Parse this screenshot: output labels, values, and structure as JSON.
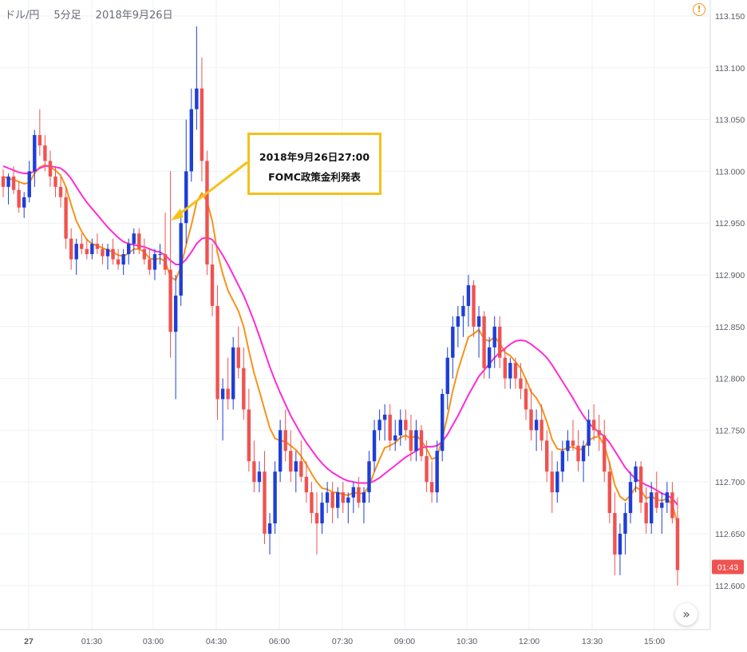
{
  "header": {
    "pair": "ドル/円",
    "interval": "5分足",
    "date": "2018年9月26日"
  },
  "annotation": {
    "line1": "2018年9月26日27:00",
    "line2": "FOMC政策金利発表"
  },
  "last_price_label": "01:43",
  "icons": {
    "alert": "alert-circle-icon",
    "scroll": "double-chevron-right-icon"
  },
  "colors": {
    "up": "#1e3ed6",
    "down": "#ef5350",
    "ma_short": "#f7931a",
    "ma_long": "#ff2bd6",
    "annotation_border": "#f5c11b",
    "price_label_bg": "#ef5350"
  },
  "chart_data": {
    "type": "candlestick",
    "y_ticks": [
      "113.150",
      "113.100",
      "113.050",
      "113.000",
      "112.950",
      "112.900",
      "112.850",
      "112.800",
      "112.750",
      "112.700",
      "112.650",
      "112.600"
    ],
    "ylim": [
      112.57,
      113.17
    ],
    "x_ticks": [
      "27",
      "01:30",
      "03:00",
      "04:30",
      "06:00",
      "07:30",
      "09:00",
      "10:30",
      "12:00",
      "13:30",
      "15:00"
    ],
    "candle_interval_minutes": 5,
    "candles_ohlc": [
      [
        112.995,
        113.002,
        112.975,
        112.985
      ],
      [
        112.985,
        112.998,
        112.968,
        112.995
      ],
      [
        112.995,
        113.005,
        112.978,
        112.982
      ],
      [
        112.982,
        112.99,
        112.96,
        112.965
      ],
      [
        112.965,
        112.98,
        112.955,
        112.975
      ],
      [
        112.975,
        113.01,
        112.97,
        113.0
      ],
      [
        113.0,
        113.04,
        112.985,
        113.035
      ],
      [
        113.035,
        113.06,
        113.015,
        113.025
      ],
      [
        113.025,
        113.035,
        113.0,
        113.01
      ],
      [
        113.01,
        113.02,
        112.985,
        112.995
      ],
      [
        112.995,
        113.005,
        112.975,
        112.985
      ],
      [
        112.985,
        112.995,
        112.965,
        112.975
      ],
      [
        112.975,
        112.985,
        112.925,
        112.935
      ],
      [
        112.935,
        112.945,
        112.905,
        112.915
      ],
      [
        112.915,
        112.935,
        112.9,
        112.93
      ],
      [
        112.93,
        112.94,
        112.92,
        112.925
      ],
      [
        112.925,
        112.935,
        112.915,
        112.92
      ],
      [
        112.92,
        112.935,
        112.915,
        112.93
      ],
      [
        112.93,
        112.94,
        112.92,
        112.925
      ],
      [
        112.925,
        112.93,
        112.91,
        112.918
      ],
      [
        112.918,
        112.93,
        112.905,
        112.925
      ],
      [
        112.925,
        112.935,
        112.91,
        112.915
      ],
      [
        112.915,
        112.925,
        112.905,
        112.91
      ],
      [
        112.91,
        112.925,
        112.9,
        112.92
      ],
      [
        112.92,
        112.935,
        112.91,
        112.93
      ],
      [
        112.93,
        112.945,
        112.92,
        112.94
      ],
      [
        112.94,
        112.945,
        112.92,
        112.925
      ],
      [
        112.925,
        112.935,
        112.91,
        112.915
      ],
      [
        112.915,
        112.925,
        112.9,
        112.905
      ],
      [
        112.905,
        112.925,
        112.895,
        112.92
      ],
      [
        112.92,
        112.93,
        112.91,
        112.92
      ],
      [
        112.92,
        112.96,
        112.9,
        112.905
      ],
      [
        112.905,
        113.0,
        112.82,
        112.845
      ],
      [
        112.845,
        112.9,
        112.78,
        112.88
      ],
      [
        112.88,
        112.96,
        112.87,
        112.95
      ],
      [
        112.95,
        113.05,
        112.93,
        113.0
      ],
      [
        113.0,
        113.08,
        112.99,
        113.06
      ],
      [
        113.06,
        113.14,
        113.04,
        113.08
      ],
      [
        113.08,
        113.11,
        112.99,
        113.01
      ],
      [
        113.01,
        113.02,
        112.9,
        112.91
      ],
      [
        112.91,
        112.93,
        112.86,
        112.87
      ],
      [
        112.87,
        112.89,
        112.76,
        112.78
      ],
      [
        112.78,
        112.8,
        112.74,
        112.79
      ],
      [
        112.79,
        112.82,
        112.77,
        112.78
      ],
      [
        112.78,
        112.84,
        112.77,
        112.83
      ],
      [
        112.83,
        112.85,
        112.8,
        112.81
      ],
      [
        112.81,
        112.83,
        112.76,
        112.77
      ],
      [
        112.77,
        112.79,
        112.71,
        112.72
      ],
      [
        112.72,
        112.74,
        112.69,
        112.7
      ],
      [
        112.7,
        112.72,
        112.69,
        112.71
      ],
      [
        112.71,
        112.73,
        112.64,
        112.65
      ],
      [
        112.65,
        112.67,
        112.63,
        112.66
      ],
      [
        112.66,
        112.72,
        112.65,
        112.71
      ],
      [
        112.71,
        112.76,
        112.7,
        112.75
      ],
      [
        112.75,
        112.77,
        112.72,
        112.73
      ],
      [
        112.73,
        112.75,
        112.7,
        112.71
      ],
      [
        112.71,
        112.73,
        112.69,
        112.72
      ],
      [
        112.72,
        112.74,
        112.7,
        112.705
      ],
      [
        112.705,
        112.72,
        112.68,
        112.69
      ],
      [
        112.69,
        112.7,
        112.66,
        112.67
      ],
      [
        112.67,
        112.69,
        112.63,
        112.66
      ],
      [
        112.66,
        112.69,
        112.65,
        112.68
      ],
      [
        112.68,
        112.7,
        112.67,
        112.69
      ],
      [
        112.69,
        112.7,
        112.66,
        112.675
      ],
      [
        112.675,
        112.695,
        112.665,
        112.69
      ],
      [
        112.69,
        112.7,
        112.67,
        112.68
      ],
      [
        112.68,
        112.69,
        112.66,
        112.685
      ],
      [
        112.685,
        112.7,
        112.67,
        112.695
      ],
      [
        112.695,
        112.705,
        112.675,
        112.68
      ],
      [
        112.68,
        112.695,
        112.66,
        112.69
      ],
      [
        112.69,
        112.73,
        112.68,
        112.72
      ],
      [
        112.72,
        112.76,
        112.71,
        112.75
      ],
      [
        112.75,
        112.77,
        112.74,
        112.76
      ],
      [
        112.76,
        112.775,
        112.74,
        112.765
      ],
      [
        112.765,
        112.775,
        112.73,
        112.74
      ],
      [
        112.74,
        112.76,
        112.73,
        112.745
      ],
      [
        112.745,
        112.77,
        112.735,
        112.76
      ],
      [
        112.76,
        112.77,
        112.74,
        112.75
      ],
      [
        112.75,
        112.765,
        112.72,
        112.73
      ],
      [
        112.73,
        112.76,
        112.72,
        112.75
      ],
      [
        112.75,
        112.755,
        112.72,
        112.725
      ],
      [
        112.725,
        112.74,
        112.69,
        112.7
      ],
      [
        112.7,
        112.72,
        112.68,
        112.69
      ],
      [
        112.69,
        112.74,
        112.68,
        112.73
      ],
      [
        112.73,
        112.79,
        112.72,
        112.785
      ],
      [
        112.785,
        112.83,
        112.77,
        112.82
      ],
      [
        112.82,
        112.86,
        112.8,
        112.85
      ],
      [
        112.85,
        112.87,
        112.83,
        112.86
      ],
      [
        112.86,
        112.88,
        112.84,
        112.87
      ],
      [
        112.87,
        112.9,
        112.85,
        112.89
      ],
      [
        112.89,
        112.895,
        112.84,
        112.85
      ],
      [
        112.85,
        112.87,
        112.82,
        112.86
      ],
      [
        112.86,
        112.865,
        112.8,
        112.81
      ],
      [
        112.81,
        112.84,
        112.8,
        112.83
      ],
      [
        112.83,
        112.86,
        112.81,
        112.85
      ],
      [
        112.85,
        112.86,
        112.81,
        112.82
      ],
      [
        112.82,
        112.83,
        112.79,
        112.8
      ],
      [
        112.8,
        112.82,
        112.79,
        112.815
      ],
      [
        112.815,
        112.82,
        112.79,
        112.8
      ],
      [
        112.8,
        112.815,
        112.78,
        112.79
      ],
      [
        112.79,
        112.8,
        112.76,
        112.77
      ],
      [
        112.77,
        112.79,
        112.74,
        112.75
      ],
      [
        112.75,
        112.77,
        112.73,
        112.76
      ],
      [
        112.76,
        112.775,
        112.73,
        112.74
      ],
      [
        112.74,
        112.75,
        112.7,
        112.71
      ],
      [
        112.71,
        112.73,
        112.67,
        112.69
      ],
      [
        112.69,
        112.72,
        112.68,
        112.71
      ],
      [
        112.71,
        112.74,
        112.7,
        112.73
      ],
      [
        112.73,
        112.75,
        112.72,
        112.74
      ],
      [
        112.74,
        112.76,
        112.73,
        112.735
      ],
      [
        112.735,
        112.75,
        112.71,
        112.72
      ],
      [
        112.72,
        112.74,
        112.7,
        112.735
      ],
      [
        112.735,
        112.77,
        112.725,
        112.76
      ],
      [
        112.76,
        112.775,
        112.74,
        112.75
      ],
      [
        112.75,
        112.765,
        112.73,
        112.745
      ],
      [
        112.745,
        112.76,
        112.7,
        112.71
      ],
      [
        112.71,
        112.72,
        112.66,
        112.67
      ],
      [
        112.67,
        112.69,
        112.61,
        112.63
      ],
      [
        112.63,
        112.66,
        112.61,
        112.65
      ],
      [
        112.65,
        112.68,
        112.63,
        112.67
      ],
      [
        112.67,
        112.71,
        112.66,
        112.7
      ],
      [
        112.7,
        112.72,
        112.69,
        112.715
      ],
      [
        112.715,
        112.72,
        112.67,
        112.68
      ],
      [
        112.68,
        112.695,
        112.65,
        112.66
      ],
      [
        112.66,
        112.7,
        112.65,
        112.69
      ],
      [
        112.69,
        112.71,
        112.67,
        112.675
      ],
      [
        112.675,
        112.69,
        112.65,
        112.68
      ],
      [
        112.68,
        112.7,
        112.67,
        112.69
      ],
      [
        112.69,
        112.7,
        112.66,
        112.665
      ],
      [
        112.665,
        112.685,
        112.6,
        112.615
      ]
    ],
    "series": [
      {
        "name": "",
        "values": [
          112.995,
          112.993,
          112.992,
          112.99,
          112.988,
          112.989,
          112.998,
          113.004,
          113.006,
          113.004,
          113.001,
          112.996,
          112.985,
          112.968,
          112.952,
          112.942,
          112.934,
          112.93,
          112.928,
          112.926,
          112.924,
          112.922,
          112.919,
          112.918,
          112.921,
          112.925,
          112.925,
          112.922,
          112.916,
          112.915,
          112.916,
          112.913,
          112.898,
          112.895,
          112.908,
          112.929,
          112.948,
          112.97,
          112.979,
          112.971,
          112.952,
          112.921,
          112.901,
          112.885,
          112.875,
          112.865,
          112.85,
          112.827,
          112.805,
          112.788,
          112.77,
          112.752,
          112.742,
          112.74,
          112.739,
          112.735,
          112.731,
          112.725,
          112.717,
          112.708,
          112.7,
          112.694,
          112.693,
          112.69,
          112.69,
          112.688,
          112.687,
          112.69,
          112.689,
          112.689,
          112.696,
          112.71,
          112.722,
          112.733,
          112.735,
          112.738,
          112.743,
          112.745,
          112.742,
          112.745,
          112.74,
          112.732,
          112.722,
          112.724,
          112.742,
          112.764,
          112.788,
          112.808,
          112.824,
          112.84,
          112.843,
          112.847,
          112.838,
          112.836,
          112.84,
          112.834,
          112.825,
          112.822,
          112.816,
          112.81,
          112.799,
          112.787,
          112.781,
          112.772,
          112.758,
          112.741,
          112.732,
          112.731,
          112.733,
          112.734,
          112.731,
          112.732,
          112.74,
          112.743,
          112.744,
          112.735,
          112.718,
          112.697,
          112.686,
          112.682,
          112.687,
          112.695,
          112.692,
          112.684,
          112.686,
          112.683,
          112.682,
          112.684,
          112.678,
          112.66
        ]
      },
      {
        "name": "",
        "values": [
          113.005,
          113.003,
          113.001,
          112.999,
          112.998,
          112.998,
          113.0,
          113.003,
          113.005,
          113.005,
          113.004,
          113.003,
          112.999,
          112.993,
          112.985,
          112.977,
          112.97,
          112.964,
          112.958,
          112.952,
          112.946,
          112.941,
          112.936,
          112.932,
          112.93,
          112.929,
          112.928,
          112.927,
          112.925,
          112.923,
          112.922,
          112.919,
          112.914,
          112.91,
          112.91,
          112.915,
          112.922,
          112.93,
          112.935,
          112.936,
          112.934,
          112.927,
          112.919,
          112.91,
          112.9,
          112.89,
          112.88,
          112.868,
          112.855,
          112.841,
          112.826,
          112.811,
          112.798,
          112.786,
          112.775,
          112.764,
          112.755,
          112.746,
          112.738,
          112.731,
          112.724,
          112.718,
          112.713,
          112.709,
          112.706,
          112.703,
          112.701,
          112.7,
          112.699,
          112.699,
          112.699,
          112.701,
          112.704,
          112.708,
          112.712,
          112.716,
          112.72,
          112.724,
          112.727,
          112.73,
          112.733,
          112.734,
          112.734,
          112.735,
          112.739,
          112.746,
          112.755,
          112.764,
          112.774,
          112.784,
          112.793,
          112.802,
          112.808,
          112.814,
          112.82,
          112.825,
          112.829,
          112.833,
          112.836,
          112.837,
          112.836,
          112.833,
          112.829,
          112.825,
          112.82,
          112.813,
          112.805,
          112.797,
          112.789,
          112.781,
          112.772,
          112.764,
          112.757,
          112.752,
          112.748,
          112.744,
          112.738,
          112.73,
          112.722,
          112.714,
          112.708,
          112.703,
          112.7,
          112.697,
          112.695,
          112.692,
          112.689,
          112.687,
          112.684,
          112.678
        ]
      }
    ]
  }
}
